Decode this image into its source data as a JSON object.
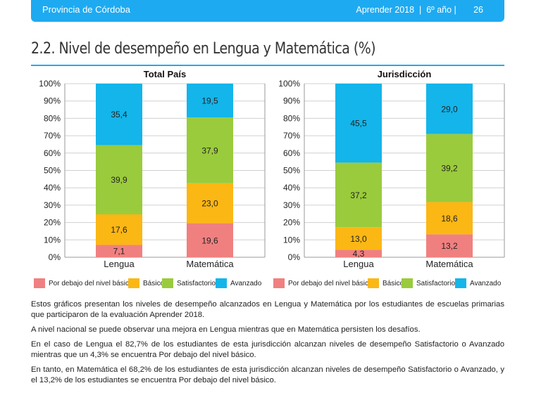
{
  "header": {
    "left": "Provincia de Córdoba",
    "right": "Aprender 2018  |  6º año |       26"
  },
  "section_title": "2.2. Nivel de desempeño en Lengua y Matemática (%)",
  "colors": {
    "por_debajo": "#f08080",
    "basico": "#fbb714",
    "satisfactorio": "#9acb3c",
    "avanzado": "#13b5ea",
    "accent": "#1eaaf1"
  },
  "chart_data": [
    {
      "type": "bar",
      "stacked": true,
      "title": "Total País",
      "categories": [
        "Lengua",
        "Matemática"
      ],
      "series": [
        {
          "name": "Por debajo del nivel básico",
          "values": [
            7.1,
            19.6
          ],
          "labels": [
            "7,1",
            "19,6"
          ]
        },
        {
          "name": "Básico",
          "values": [
            17.6,
            23.0
          ],
          "labels": [
            "17,6",
            "23,0"
          ]
        },
        {
          "name": "Satisfactorio",
          "values": [
            39.9,
            37.9
          ],
          "labels": [
            "39,9",
            "37,9"
          ]
        },
        {
          "name": "Avanzado",
          "values": [
            35.4,
            19.5
          ],
          "labels": [
            "35,4",
            "19,5"
          ]
        }
      ],
      "yticks": [
        "0%",
        "10%",
        "20%",
        "30%",
        "40%",
        "50%",
        "60%",
        "70%",
        "80%",
        "90%",
        "100%"
      ],
      "ylim": [
        0,
        100
      ],
      "legend": "bottom"
    },
    {
      "type": "bar",
      "stacked": true,
      "title": "Jurisdicción",
      "categories": [
        "Lengua",
        "Matemática"
      ],
      "series": [
        {
          "name": "Por debajo del nivel básico",
          "values": [
            4.3,
            13.2
          ],
          "labels": [
            "4,3",
            "13,2"
          ]
        },
        {
          "name": "Básico",
          "values": [
            13.0,
            18.6
          ],
          "labels": [
            "13,0",
            "18,6"
          ]
        },
        {
          "name": "Satisfactorio",
          "values": [
            37.2,
            39.2
          ],
          "labels": [
            "37,2",
            "39,2"
          ]
        },
        {
          "name": "Avanzado",
          "values": [
            45.5,
            29.0
          ],
          "labels": [
            "45,5",
            "29,0"
          ]
        }
      ],
      "yticks": [
        "0%",
        "10%",
        "20%",
        "30%",
        "40%",
        "50%",
        "60%",
        "70%",
        "80%",
        "90%",
        "100%"
      ],
      "ylim": [
        0,
        100
      ],
      "legend": "bottom"
    }
  ],
  "legends": [
    [
      {
        "label": "Por debajo del nivel básico",
        "color": "#f08080"
      },
      {
        "label": "Básico",
        "color": "#fbb714"
      },
      {
        "label": "Satisfactorio",
        "color": "#9acb3c"
      },
      {
        "label": "Avanzado",
        "color": "#13b5ea"
      }
    ],
    [
      {
        "label": "Por debajo del nivel básico",
        "color": "#f08080"
      },
      {
        "label": "Básico",
        "color": "#fbb714"
      },
      {
        "label": "Satisfactorio",
        "color": "#9acb3c"
      },
      {
        "label": "Avanzado",
        "color": "#13b5ea"
      }
    ]
  ],
  "paragraphs": [
    "Estos gráficos presentan los niveles de desempeño alcanzados en Lengua y Matemática por los estudiantes de escuelas primarias que participaron de la evaluación Aprender 2018.",
    "A nivel nacional se puede observar una mejora en Lengua mientras que en Matemática persisten los desafíos.",
    "En el caso de Lengua el 82,7% de los estudiantes de esta jurisdicción alcanzan niveles de desempeño Satisfactorio o Avanzado mientras que un 4,3% se encuentra Por debajo del nivel básico.",
    "En tanto, en Matemática el 68,2% de los estudiantes de esta jurisdicción alcanzan niveles de desempeño Satisfactorio o Avanzado, y el 13,2% de los estudiantes se encuentra Por debajo del nivel básico."
  ]
}
